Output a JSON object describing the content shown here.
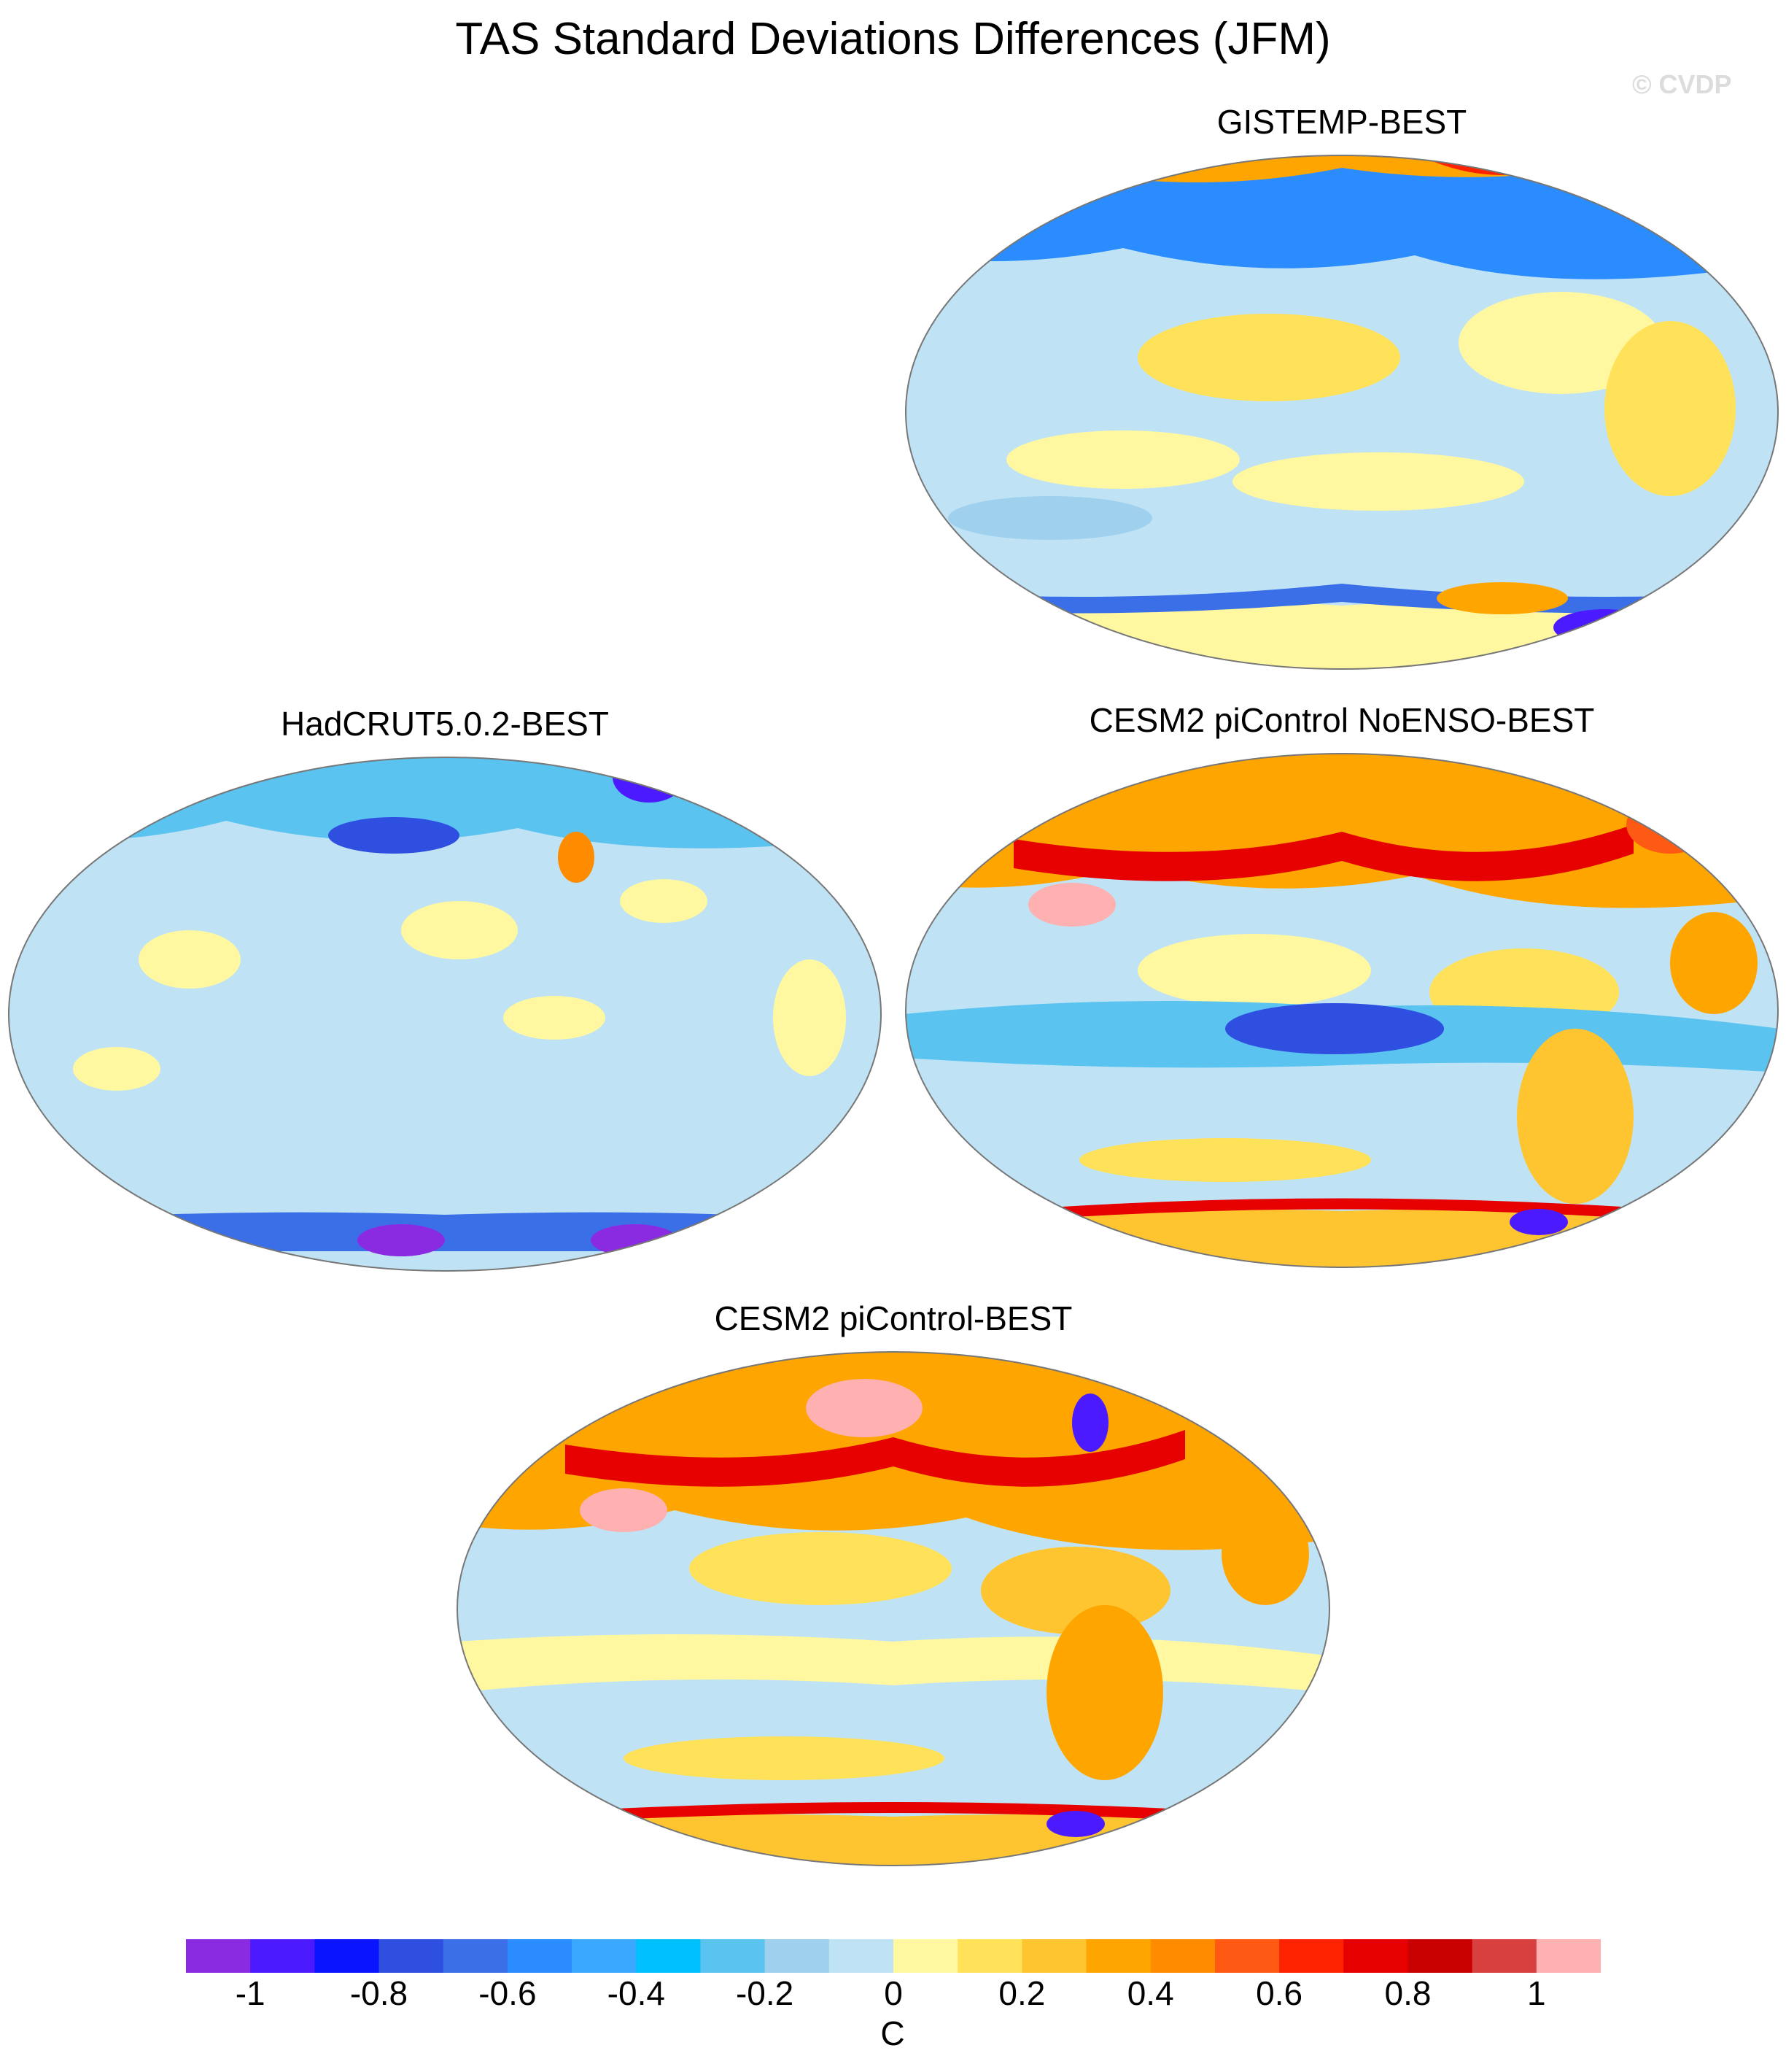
{
  "title": "TAS Standard Deviations Differences (JFM)",
  "watermark": "© CVDP",
  "panels": [
    {
      "id": "gistemp",
      "title": "GISTEMP-BEST"
    },
    {
      "id": "hadcrut",
      "title": "HadCRUT5.0.2-BEST"
    },
    {
      "id": "noenso",
      "title": "CESM2 piControl NoENSO-BEST"
    },
    {
      "id": "picontrol",
      "title": "CESM2 piControl-BEST"
    }
  ],
  "colorbar": {
    "unit": "C",
    "tick_labels": [
      "-1",
      "-0.8",
      "-0.6",
      "-0.4",
      "-0.2",
      "0",
      "0.2",
      "0.4",
      "0.6",
      "0.8",
      "1"
    ],
    "colors": [
      "#8a2be2",
      "#4b1aff",
      "#0a14ff",
      "#2e4fe0",
      "#3a6fe8",
      "#2b8cff",
      "#3aa8ff",
      "#00bfff",
      "#5ac3f0",
      "#9fd0ee",
      "#bfe3f5",
      "#fff8a0",
      "#ffe25a",
      "#ffc530",
      "#ffa500",
      "#ff8c00",
      "#ff5a14",
      "#ff2200",
      "#e60000",
      "#c80000",
      "#d84040",
      "#ffb0b0"
    ]
  }
}
